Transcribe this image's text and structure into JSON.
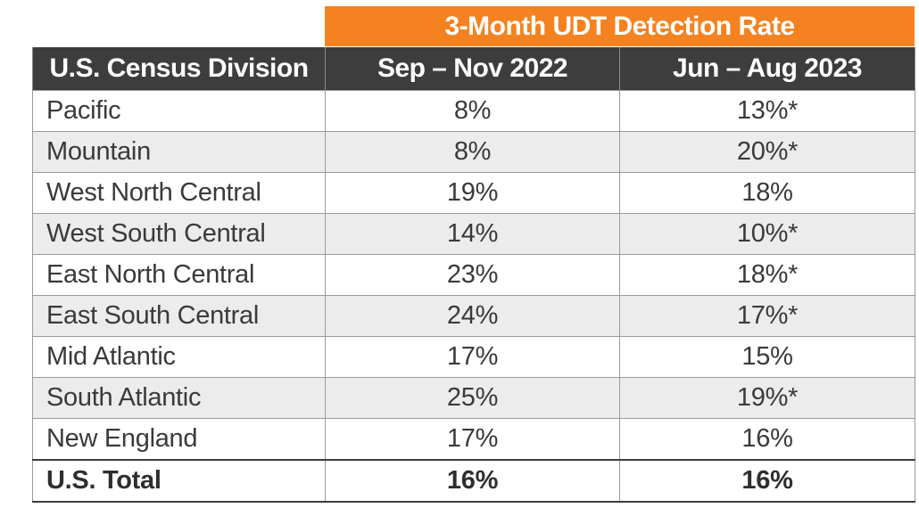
{
  "super_header": "3-Month UDT Detection Rate",
  "columns": [
    "U.S. Census Division",
    "Sep – Nov 2022",
    "Jun – Aug 2023"
  ],
  "rows": [
    {
      "division": "Pacific",
      "sep_nov_2022": "8%",
      "jun_aug_2023": "13%*"
    },
    {
      "division": "Mountain",
      "sep_nov_2022": "8%",
      "jun_aug_2023": "20%*"
    },
    {
      "division": "West North Central",
      "sep_nov_2022": "19%",
      "jun_aug_2023": "18%"
    },
    {
      "division": "West South Central",
      "sep_nov_2022": "14%",
      "jun_aug_2023": "10%*"
    },
    {
      "division": "East North Central",
      "sep_nov_2022": "23%",
      "jun_aug_2023": "18%*"
    },
    {
      "division": "East South Central",
      "sep_nov_2022": "24%",
      "jun_aug_2023": "17%*"
    },
    {
      "division": "Mid Atlantic",
      "sep_nov_2022": "17%",
      "jun_aug_2023": "15%"
    },
    {
      "division": "South Atlantic",
      "sep_nov_2022": "25%",
      "jun_aug_2023": "19%*"
    },
    {
      "division": "New England",
      "sep_nov_2022": "17%",
      "jun_aug_2023": "16%"
    }
  ],
  "total": {
    "division": "U.S. Total",
    "sep_nov_2022": "16%",
    "jun_aug_2023": "16%"
  },
  "colors": {
    "accent_orange": "#f58220",
    "header_dark": "#3d3d3d",
    "row_alt": "#ececec"
  }
}
